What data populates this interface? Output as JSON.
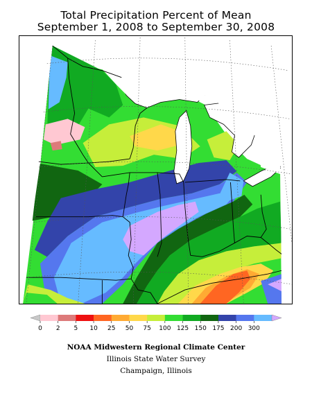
{
  "title": {
    "line1": "Total Precipitation Percent of Mean",
    "line2": "September 1, 2008 to September 30, 2008"
  },
  "legend": {
    "labels": [
      "0",
      "2",
      "5",
      "10",
      "25",
      "50",
      "75",
      "100",
      "125",
      "150",
      "175",
      "200",
      "300"
    ],
    "colors": [
      "#ffc8d2",
      "#dd7a7a",
      "#ee1111",
      "#ff6622",
      "#ffaa33",
      "#ffd84a",
      "#c6ee3a",
      "#33dd33",
      "#11aa22",
      "#116611",
      "#3344aa",
      "#5577ee",
      "#66bbff"
    ],
    "under_color": "#c8c8c8",
    "over_color": "#d4a8ff"
  },
  "credits": {
    "line1": "NOAA Midwestern Regional Climate Center",
    "line2": "Illinois State Water Survey",
    "line3": "Champaign, Illinois"
  },
  "map": {
    "colors": {
      "c50": "#ffd84a",
      "c75": "#c6ee3a",
      "c100": "#33dd33",
      "c125": "#11aa22",
      "c150": "#116611",
      "c175": "#3344aa",
      "c200": "#5577ee",
      "c300": "#66bbff",
      "over": "#d4a8ff",
      "c25": "#ffaa33",
      "c10": "#ff6622",
      "c2": "#dd7a7a",
      "border": "#000000",
      "grid": "#555555",
      "water": "#ffffff"
    }
  }
}
